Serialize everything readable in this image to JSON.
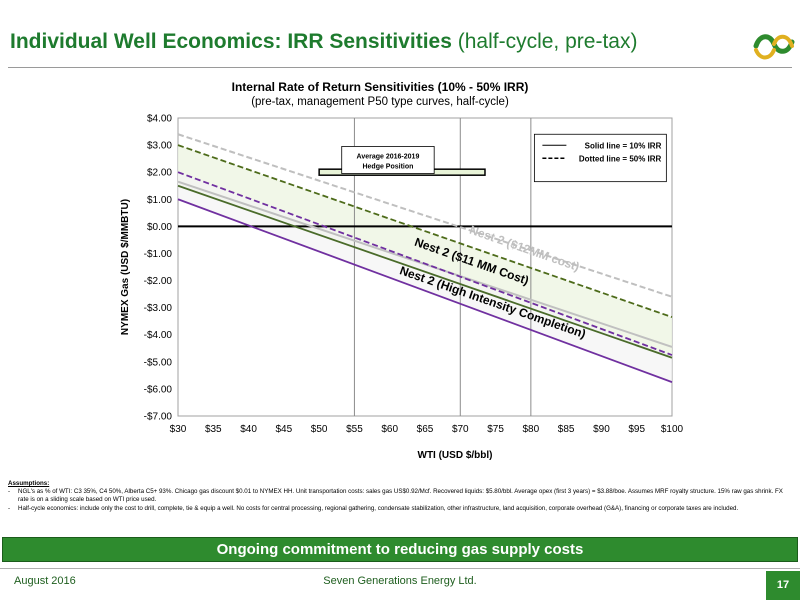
{
  "header": {
    "title_bold": "Individual Well Economics: IRR Sensitivities",
    "title_normal": "(half-cycle, pre-tax)"
  },
  "colors": {
    "title_green": "#1e7b2e",
    "banner_green": "#2e8b2e",
    "solid_green": "#4a6b2a",
    "dotted_green": "#4d6b1a",
    "purple": "#7030a0",
    "gray": "#a6a6a6",
    "fill_green": "#eef6e4"
  },
  "chart_data": {
    "type": "line",
    "title": "Internal Rate of Return Sensitivities (10% - 50% IRR)",
    "subtitle": "(pre-tax, management P50 type curves, half-cycle)",
    "xlabel": "WTI (USD $/bbl)",
    "ylabel": "NYMEX Gas (USD $/MMBTU)",
    "xlim": [
      30,
      100
    ],
    "ylim": [
      -7,
      4
    ],
    "x_ticks": [
      30,
      35,
      40,
      45,
      50,
      55,
      60,
      65,
      70,
      75,
      80,
      85,
      90,
      95,
      100
    ],
    "x_tick_labels": [
      "$30",
      "$35",
      "$40",
      "$45",
      "$50",
      "$55",
      "$60",
      "$65",
      "$70",
      "$75",
      "$80",
      "$85",
      "$90",
      "$95",
      "$100"
    ],
    "y_ticks": [
      4,
      3,
      2,
      1,
      0,
      -1,
      -2,
      -3,
      -4,
      -5,
      -6,
      -7
    ],
    "y_tick_labels": [
      "$4.00",
      "$3.00",
      "$2.00",
      "$1.00",
      "$0.00",
      "-$1.00",
      "-$2.00",
      "-$3.00",
      "-$4.00",
      "-$5.00",
      "-$6.00",
      "-$7.00"
    ],
    "vgrid_x": [
      55,
      70,
      80
    ],
    "grid": "vertical",
    "series": [
      {
        "case": "nest2_12mm",
        "style": "solid",
        "color": "#c0c0c0",
        "x": [
          30,
          100
        ],
        "y": [
          1.65,
          -4.45
        ]
      },
      {
        "case": "nest2_12mm",
        "style": "dashed",
        "color": "#bfbfbf",
        "x": [
          30,
          100
        ],
        "y": [
          3.4,
          -2.6
        ]
      },
      {
        "case": "nest2_11mm",
        "style": "solid",
        "color": "#4a6b2a",
        "x": [
          30,
          100
        ],
        "y": [
          1.5,
          -4.85
        ]
      },
      {
        "case": "nest2_11mm",
        "style": "dashed",
        "color": "#4d6b1a",
        "x": [
          30,
          100
        ],
        "y": [
          3.0,
          -3.35
        ]
      },
      {
        "case": "nest2_hic",
        "style": "solid",
        "color": "#7030a0",
        "x": [
          30,
          100
        ],
        "y": [
          1.0,
          -5.75
        ]
      },
      {
        "case": "nest2_hic",
        "style": "dashed",
        "color": "#7030a0",
        "x": [
          30,
          100
        ],
        "y": [
          2.0,
          -4.75
        ]
      }
    ],
    "zero_line": 0,
    "hedge_position": {
      "x": [
        50,
        73.5
      ],
      "y": 2.0
    },
    "annotations": {
      "hedge_box": [
        "Average 2016-2019",
        "Hedge Position"
      ],
      "label_12mm": "Nest 2 ($12MM cost)",
      "label_11mm": "Nest 2 ($11 MM Cost)",
      "label_hic": "Nest 2 (High Intensity Completion)"
    },
    "legend": {
      "placement": "top-right",
      "entries": [
        "Solid line = 10% IRR",
        "Dotted line = 50% IRR"
      ]
    }
  },
  "assumptions": {
    "heading": "Assumptions:",
    "items": [
      "NGL's as % of WTI: C3 35%, C4 50%, Alberta C5+ 93%. Chicago gas discount $0.01 to NYMEX HH. Unit transportation costs: sales gas US$0.92/Mcf. Recovered liquids: $5.80/bbl. Average opex (first 3 years) = $3.88/boe. Assumes MRF royalty structure. 15% raw gas shrink. FX rate is on a sliding scale based on WTI price used.",
      "Half-cycle economics: include only the cost to drill, complete, tie & equip a well. No costs for central processing, regional gathering, condensate stabilization, other infrastructure, land acquisition, corporate overhead (G&A), financing or corporate taxes are included."
    ]
  },
  "banner": {
    "text": "Ongoing commitment to reducing gas supply costs"
  },
  "footer": {
    "date": "August 2016",
    "company": "Seven Generations Energy Ltd.",
    "page": "17"
  },
  "icons": {
    "logo": "company-logo-icon"
  }
}
